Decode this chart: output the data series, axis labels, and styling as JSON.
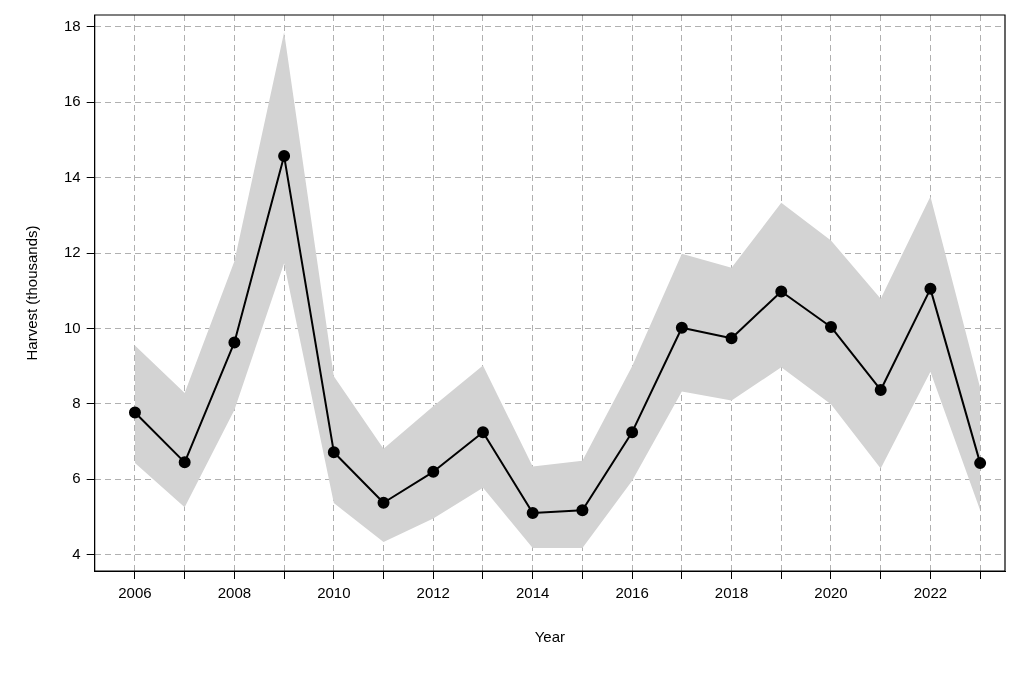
{
  "chart_data": {
    "type": "line",
    "xlabel": "Year",
    "ylabel": "Harvest (thousands)",
    "x": [
      2006,
      2007,
      2008,
      2009,
      2010,
      2011,
      2012,
      2013,
      2014,
      2015,
      2016,
      2017,
      2018,
      2019,
      2020,
      2021,
      2022,
      2023
    ],
    "series": [
      {
        "color": "#000000",
        "values": [
          7.77,
          6.45,
          9.63,
          14.57,
          6.72,
          5.38,
          6.2,
          7.25,
          5.11,
          5.18,
          7.25,
          10.02,
          9.74,
          10.98,
          10.04,
          8.37,
          11.05,
          6.43
        ],
        "lower": [
          6.43,
          5.26,
          7.84,
          11.73,
          5.37,
          4.34,
          4.96,
          5.78,
          4.18,
          4.18,
          5.96,
          8.33,
          8.09,
          8.97,
          7.99,
          6.29,
          8.85,
          5.18
        ],
        "upper": [
          9.55,
          8.29,
          11.78,
          17.85,
          8.73,
          6.81,
          7.94,
          9.02,
          6.34,
          6.49,
          9.0,
          11.98,
          11.61,
          13.33,
          12.33,
          10.79,
          13.5,
          8.43
        ]
      }
    ],
    "xlim": [
      2005.19,
      2023.5
    ],
    "xticks": [
      2006,
      {
        "value": 2007,
        "label": null
      },
      2008,
      {
        "value": 2009,
        "label": null
      },
      2010,
      {
        "value": 2011,
        "label": null
      },
      2012,
      {
        "value": 2013,
        "label": null
      },
      2014,
      {
        "value": 2015,
        "label": null
      },
      2016,
      {
        "value": 2017,
        "label": null
      },
      2018,
      {
        "value": 2019,
        "label": null
      },
      2020,
      {
        "value": 2021,
        "label": null
      },
      2022,
      {
        "value": 2023,
        "label": null
      }
    ],
    "ylim": [
      3.57,
      18.31
    ],
    "yticks": [
      4,
      6,
      8,
      10,
      12,
      14,
      16,
      18
    ],
    "grid": true,
    "legend": false,
    "marker": "circle",
    "line_style": "solid"
  }
}
